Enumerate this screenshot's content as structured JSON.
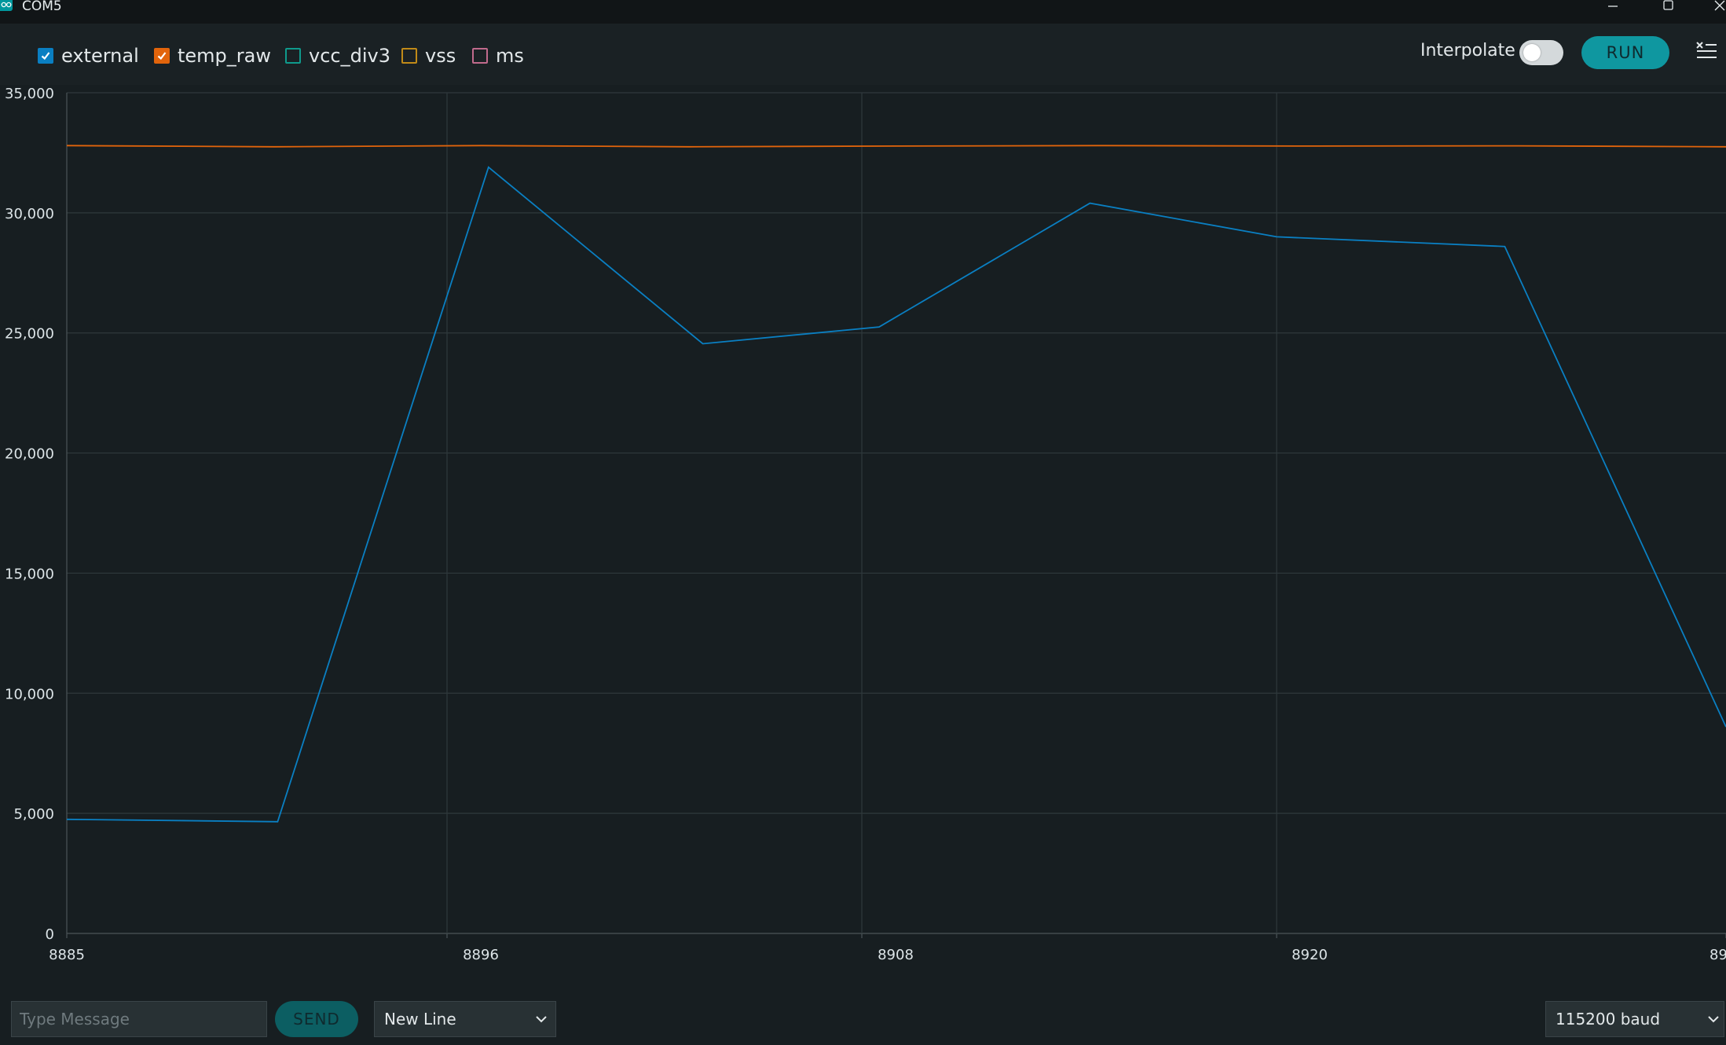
{
  "window": {
    "title": "COM5",
    "controls": [
      "minimize-icon",
      "maximize-icon",
      "close-icon"
    ]
  },
  "legend": [
    {
      "label": "external",
      "checked": true,
      "color": "#0a7fc2"
    },
    {
      "label": "temp_raw",
      "checked": true,
      "color": "#e2640b"
    },
    {
      "label": "vcc_div3",
      "checked": false,
      "color": "#0f9a8c"
    },
    {
      "label": "vss",
      "checked": false,
      "color": "#c08a18"
    },
    {
      "label": "ms",
      "checked": false,
      "color": "#c06a8c"
    }
  ],
  "toolbar": {
    "interpolate_label": "Interpolate",
    "interpolate_on": false,
    "run_label": "RUN",
    "clear_icon": "clear-list-icon"
  },
  "chart_data": {
    "type": "line",
    "x_ticks": [
      "8885",
      "8896",
      "8908",
      "8920",
      "89"
    ],
    "y_ticks": [
      "0",
      "5,000",
      "10,000",
      "15,000",
      "20,000",
      "25,000",
      "30,000",
      "35,000"
    ],
    "ylim": [
      0,
      35000
    ],
    "xlim": [
      8885,
      8933
    ],
    "grid": true,
    "series": [
      {
        "name": "external",
        "color": "#0a7fc2",
        "points": [
          [
            8885,
            4750
          ],
          [
            8891.1,
            4650
          ],
          [
            8897.2,
            31900
          ],
          [
            8903.4,
            24550
          ],
          [
            8908.5,
            25250
          ],
          [
            8914.6,
            30400
          ],
          [
            8920,
            29000
          ],
          [
            8926.6,
            28600
          ],
          [
            8933,
            8600
          ]
        ]
      },
      {
        "name": "temp_raw",
        "color": "#e2640b",
        "points": [
          [
            8885,
            32800
          ],
          [
            8891,
            32750
          ],
          [
            8897,
            32800
          ],
          [
            8903,
            32750
          ],
          [
            8909,
            32780
          ],
          [
            8915,
            32800
          ],
          [
            8921,
            32780
          ],
          [
            8927,
            32790
          ],
          [
            8933,
            32750
          ]
        ]
      }
    ]
  },
  "footer": {
    "message_placeholder": "Type Message",
    "send_label": "SEND",
    "line_ending": "New Line",
    "baud": "115200 baud"
  }
}
